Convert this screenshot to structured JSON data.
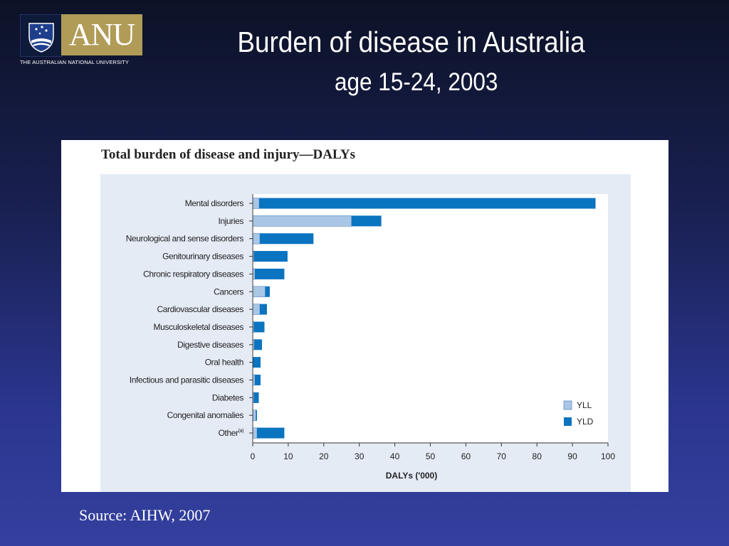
{
  "logo": {
    "wordmark": "ANU",
    "subtitle": "THE AUSTRALIAN NATIONAL UNIVERSITY"
  },
  "slide": {
    "title": "Burden of disease in Australia",
    "subtitle": "age 15-24, 2003",
    "source": "Source: AIHW, 2007"
  },
  "colors": {
    "yll": "#aac6e6",
    "yld": "#0a74c0",
    "plot_background": "#e4ebf5"
  },
  "chart_data": {
    "type": "bar",
    "orientation": "horizontal",
    "stacked": true,
    "title": "Total burden of disease and injury—DALYs",
    "xlabel": "DALYs ('000)",
    "ylabel": "",
    "xlim": [
      0,
      100
    ],
    "xticks": [
      "0",
      "10",
      "20",
      "30",
      "40",
      "50",
      "60",
      "70",
      "80",
      "90",
      "100"
    ],
    "legend_position": "bottom-right",
    "grid": false,
    "categories": [
      "Mental disorders",
      "Injuries",
      "Neurological and sense disorders",
      "Genitourinary diseases",
      "Chronic respiratory diseases",
      "Cancers",
      "Cardiovascular diseases",
      "Musculoskeletal diseases",
      "Digestive diseases",
      "Oral health",
      "Infectious and parasitic diseases",
      "Diabetes",
      "Congenital anomalies",
      "Other"
    ],
    "category_note": {
      "index": 13,
      "superscript": "(a)"
    },
    "series": [
      {
        "name": "YLL",
        "values": [
          1.8,
          27.8,
          2.0,
          0.3,
          0.6,
          3.5,
          2.0,
          0.3,
          0.4,
          0.0,
          0.6,
          0.3,
          0.9,
          1.2
        ]
      },
      {
        "name": "YLD",
        "values": [
          94.7,
          8.4,
          15.1,
          9.5,
          8.3,
          1.3,
          2.0,
          3.0,
          2.2,
          2.2,
          1.6,
          1.4,
          0.3,
          7.7
        ]
      }
    ]
  }
}
